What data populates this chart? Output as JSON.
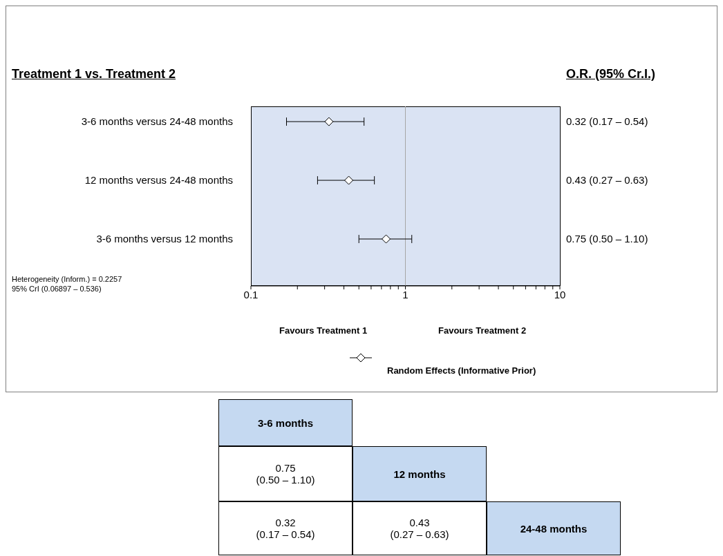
{
  "chart_data": [
    {
      "type": "scatter",
      "orientation": "horizontal",
      "title": "Treatment 1 vs. Treatment 2",
      "categories": [
        "3-6 months versus 24-48 months",
        "12 months versus 24-48 months",
        "3-6 months versus 12 months"
      ],
      "series": [
        {
          "name": "Random Effects  (Informative Prior)",
          "color": "#000000",
          "values": [
            0.32,
            0.43,
            0.75
          ],
          "errors": [
            [
              0.17,
              0.54
            ],
            [
              0.27,
              0.63
            ],
            [
              0.5,
              1.1
            ]
          ],
          "value_labels": [
            "0.32 (0.17 – 0.54)",
            "0.43 (0.27 – 0.63)",
            "0.75 (0.50 – 1.10)"
          ]
        }
      ],
      "log": "x",
      "xlim": [
        0.1,
        10
      ],
      "xticks": [
        0.1,
        {
          "value": 0.2,
          "label": null
        },
        {
          "value": 0.3,
          "label": null
        },
        {
          "value": 0.4,
          "label": null
        },
        {
          "value": 0.5,
          "label": null
        },
        {
          "value": 0.6,
          "label": null
        },
        {
          "value": 0.7,
          "label": null
        },
        {
          "value": 0.8,
          "label": null
        },
        {
          "value": 0.9,
          "label": null
        },
        1,
        {
          "value": 2,
          "label": null
        },
        {
          "value": 3,
          "label": null
        },
        {
          "value": 4,
          "label": null
        },
        {
          "value": 5,
          "label": null
        },
        {
          "value": 6,
          "label": null
        },
        {
          "value": 7,
          "label": null
        },
        {
          "value": 8,
          "label": null
        },
        {
          "value": 9,
          "label": null
        },
        10
      ],
      "ref_lines": [
        {
          "axis": "x",
          "value": 1,
          "color": "#a6a6a6"
        }
      ],
      "marker": "diamond",
      "legend": "bottom",
      "grid": false,
      "annotations": [
        "O.R. (95% Cr.I.)",
        "Heterogeneity (Inform.) = 0.2257\n95% CrI (0.06897 – 0.536)",
        "Favours Treatment 1",
        "Favours Treatment 2"
      ]
    },
    {
      "type": "other",
      "categories": [
        "3-6 months",
        "12 months",
        "24-48 months"
      ],
      "cell_labels": [
        [
          null,
          null,
          null
        ],
        [
          "0.75\n(0.50 – 1.10)",
          null,
          null
        ],
        [
          "0.32\n(0.17 – 0.54)",
          "0.43\n(0.27 – 0.63)",
          null
        ]
      ]
    }
  ]
}
